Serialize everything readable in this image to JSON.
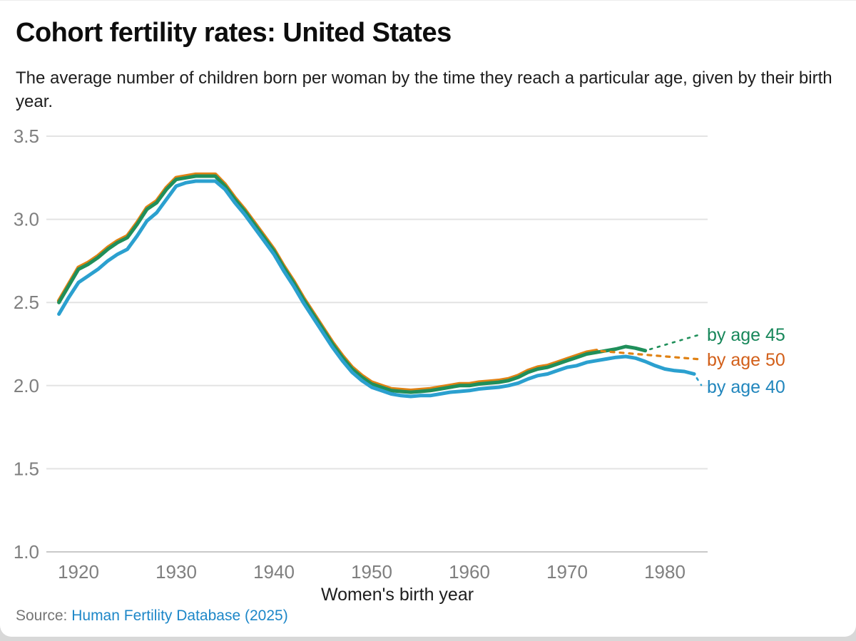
{
  "header": {
    "title": "Cohort fertility rates: United States",
    "subtitle": "The average number of children born per woman by the time they reach a particular age, given by their birth year."
  },
  "source": {
    "prefix": "Source:",
    "link_text": "Human Fertility Database (2025)"
  },
  "colors": {
    "age45_line": "#1f8f5a",
    "age45_label": "#17875a",
    "age50_line": "#e08214",
    "age50_label": "#d25f19",
    "age40_line": "#2ba0cf",
    "age40_label": "#2186bd",
    "link": "#1d87c8",
    "tick_text": "#7f7f7f"
  },
  "chart_data": {
    "type": "line",
    "title": "Cohort fertility rates: United States",
    "xlabel": "Women's birth year",
    "ylabel": "",
    "xlim": [
      1916.5,
      1984.5
    ],
    "ylim": [
      1.0,
      3.5
    ],
    "xticks": [
      1920,
      1930,
      1940,
      1950,
      1960,
      1970,
      1980
    ],
    "yticks": [
      1.0,
      1.5,
      2.0,
      2.5,
      3.0,
      3.5
    ],
    "grid": "horizontal",
    "legend_position": "right-edge-annotations",
    "series": [
      {
        "name": "by age 45",
        "label": "by age 45",
        "line_color": "#1f8f5a",
        "label_color": "#17875a",
        "line_width": 5,
        "draw_order": 2,
        "start_year": 1918,
        "end_year": 1978,
        "values": [
          2.5,
          2.6,
          2.7,
          2.73,
          2.77,
          2.82,
          2.86,
          2.89,
          2.97,
          3.06,
          3.1,
          3.18,
          3.24,
          3.25,
          3.26,
          3.26,
          3.26,
          3.2,
          3.12,
          3.05,
          2.97,
          2.89,
          2.81,
          2.71,
          2.62,
          2.52,
          2.43,
          2.34,
          2.25,
          2.17,
          2.1,
          2.05,
          2.01,
          1.99,
          1.97,
          1.965,
          1.96,
          1.965,
          1.97,
          1.98,
          1.99,
          2.0,
          2.0,
          2.01,
          2.015,
          2.02,
          2.03,
          2.05,
          2.08,
          2.1,
          2.11,
          2.13,
          2.15,
          2.17,
          2.19,
          2.2,
          2.21,
          2.22,
          2.235,
          2.225,
          2.21
        ]
      },
      {
        "name": "by age 50",
        "label": "by age 50",
        "line_color": "#e08214",
        "label_color": "#d25f19",
        "line_width": 5.5,
        "draw_order": 1,
        "start_year": 1918,
        "end_year": 1973,
        "values": [
          2.51,
          2.61,
          2.71,
          2.74,
          2.78,
          2.83,
          2.87,
          2.9,
          2.98,
          3.07,
          3.11,
          3.19,
          3.25,
          3.26,
          3.27,
          3.27,
          3.27,
          3.21,
          3.13,
          3.06,
          2.98,
          2.9,
          2.82,
          2.72,
          2.63,
          2.53,
          2.44,
          2.35,
          2.26,
          2.18,
          2.11,
          2.06,
          2.02,
          2.0,
          1.98,
          1.975,
          1.97,
          1.975,
          1.98,
          1.99,
          2.0,
          2.01,
          2.01,
          2.02,
          2.025,
          2.03,
          2.04,
          2.06,
          2.09,
          2.11,
          2.12,
          2.14,
          2.16,
          2.18,
          2.2,
          2.21
        ]
      },
      {
        "name": "by age 40",
        "label": "by age 40",
        "line_color": "#2ba0cf",
        "label_color": "#2186bd",
        "line_width": 5,
        "draw_order": 3,
        "start_year": 1918,
        "end_year": 1983,
        "values": [
          2.43,
          2.53,
          2.62,
          2.66,
          2.7,
          2.75,
          2.79,
          2.82,
          2.9,
          2.99,
          3.04,
          3.12,
          3.2,
          3.22,
          3.23,
          3.23,
          3.23,
          3.18,
          3.1,
          3.03,
          2.95,
          2.87,
          2.79,
          2.69,
          2.6,
          2.5,
          2.41,
          2.32,
          2.23,
          2.15,
          2.08,
          2.03,
          1.99,
          1.97,
          1.95,
          1.94,
          1.935,
          1.94,
          1.94,
          1.95,
          1.96,
          1.965,
          1.97,
          1.98,
          1.985,
          1.99,
          2.0,
          2.015,
          2.04,
          2.06,
          2.07,
          2.09,
          2.11,
          2.12,
          2.14,
          2.15,
          2.16,
          2.17,
          2.175,
          2.165,
          2.145,
          2.12,
          2.1,
          2.09,
          2.085,
          2.07
        ]
      }
    ]
  }
}
